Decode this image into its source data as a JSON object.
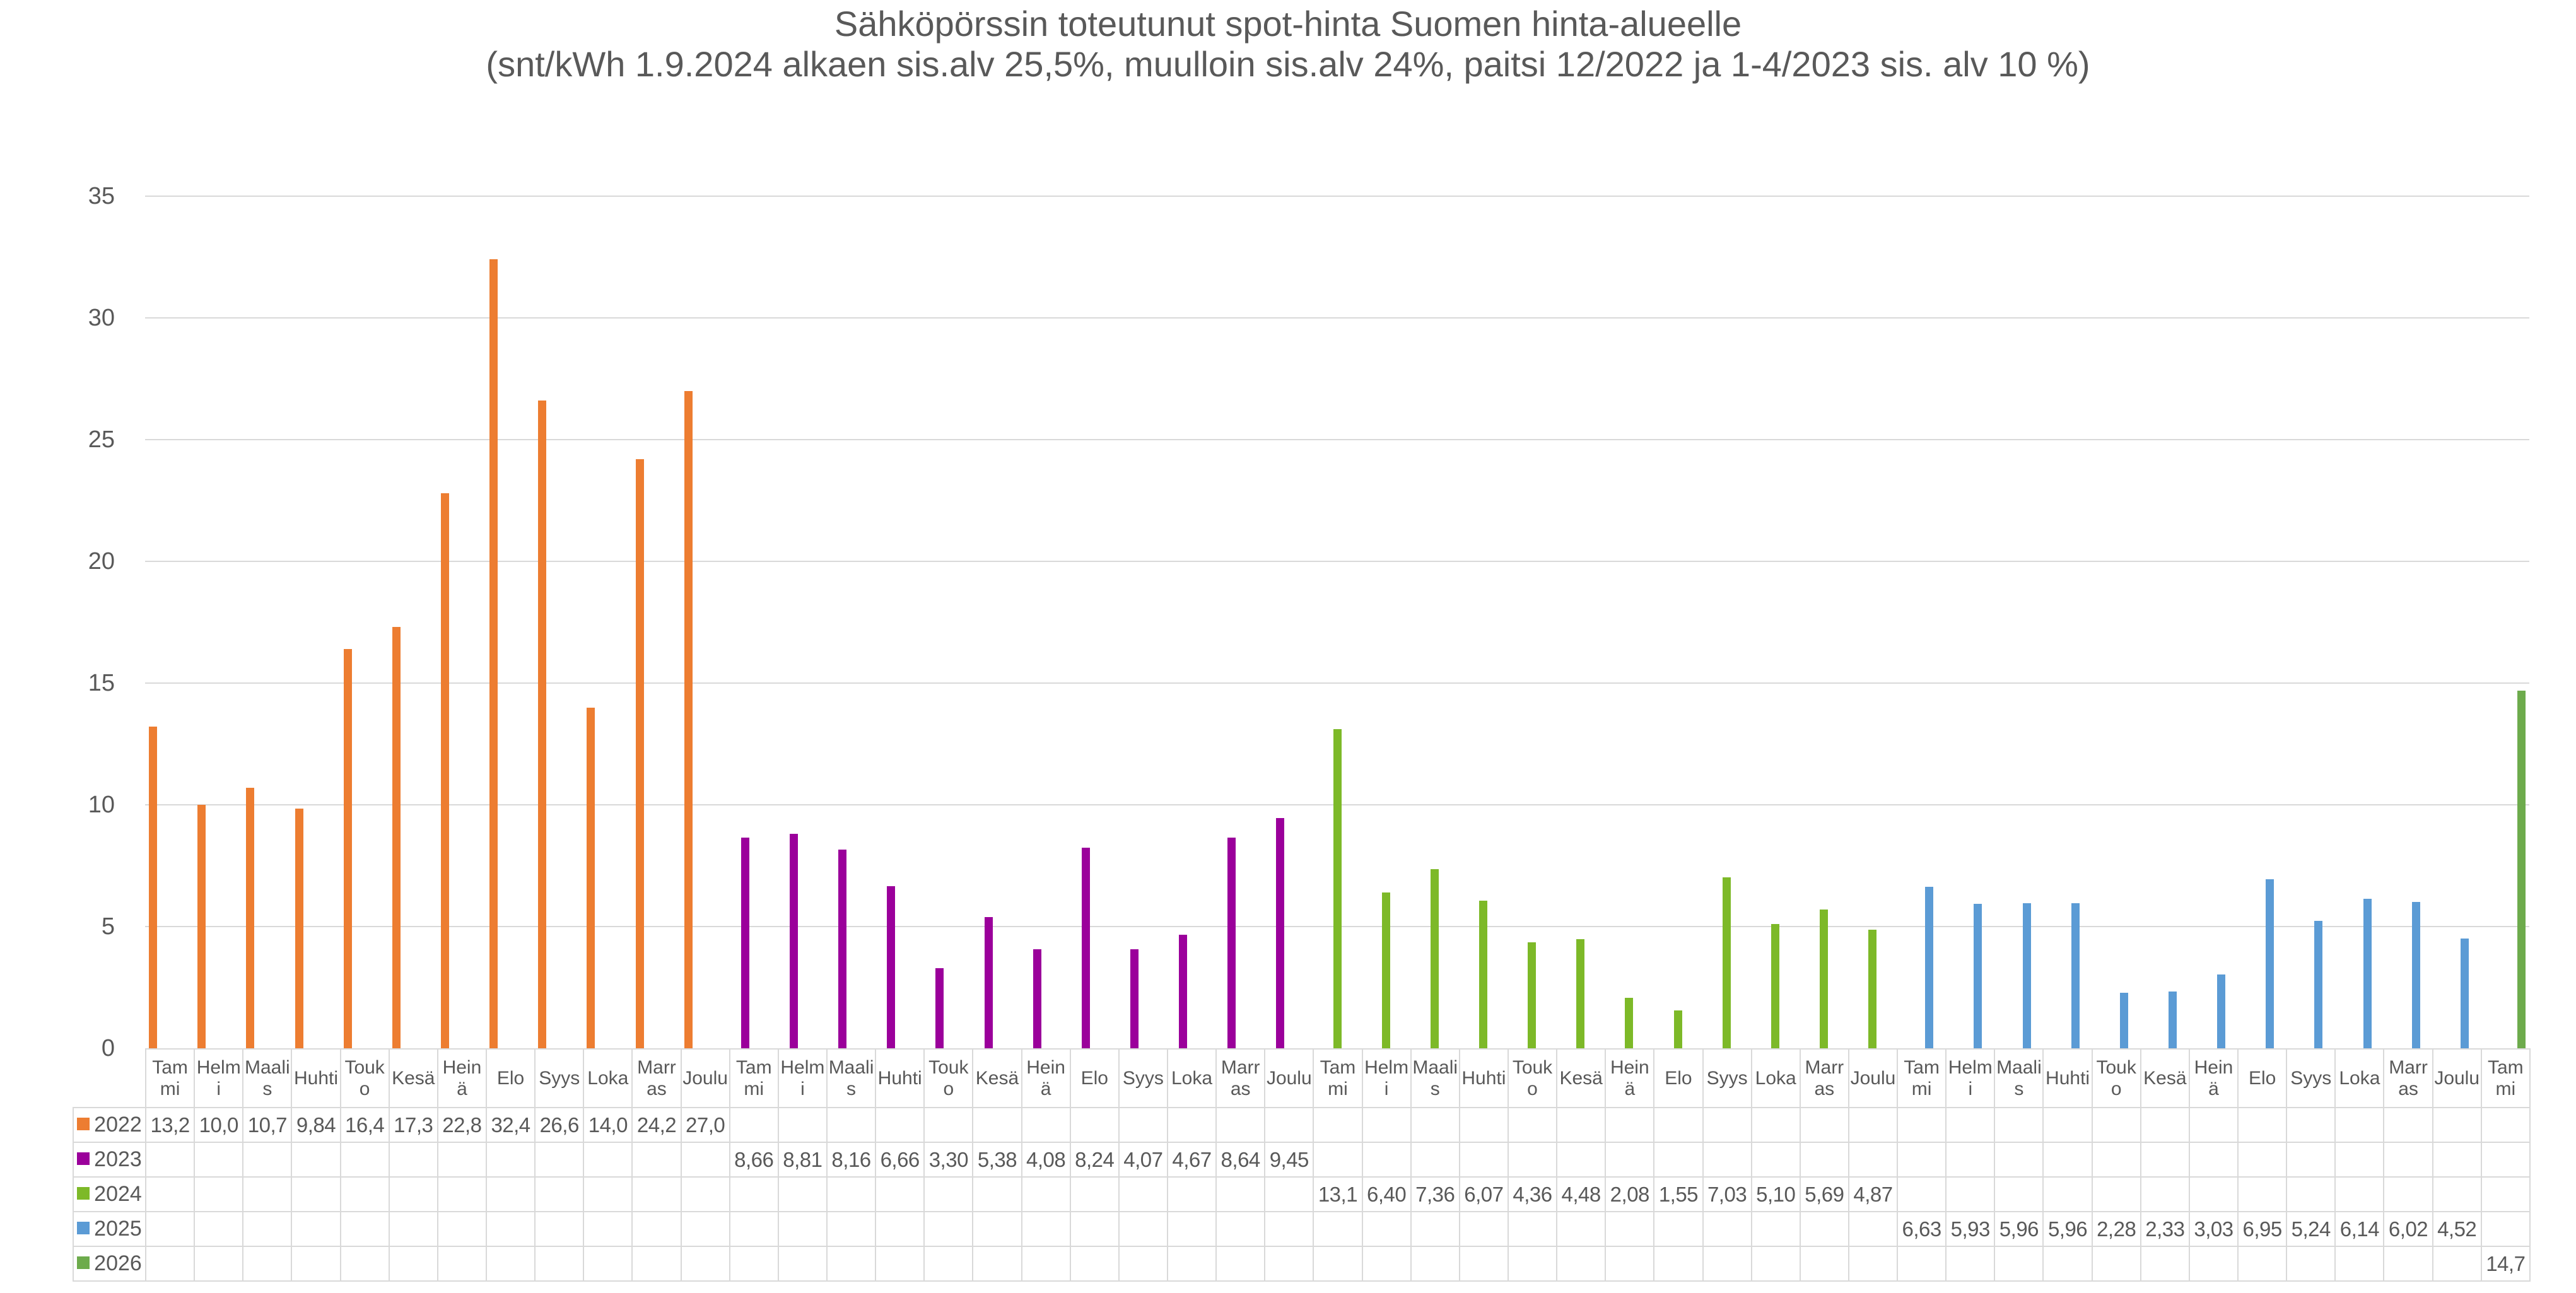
{
  "theme": {
    "background": "#FFFFFF",
    "text_color": "#595959",
    "gridline_color": "#D9D9D9",
    "table_border_color": "#D9D9D9"
  },
  "chart_data": {
    "type": "bar",
    "title": "Sähköpörssin toteutunut spot-hinta Suomen hinta-alueelle",
    "subtitle": "(snt/kWh 1.9.2024 alkaen sis.alv 25,5%, muulloin sis.alv 24%, paitsi 12/2022 ja 1-4/2023 sis. alv 10 %)",
    "unit": "snt/kWh",
    "ylim": [
      0,
      35
    ],
    "ytick_step": 5,
    "grid": "horizontal",
    "legend_position": "data-table-left-column",
    "month_lines": {
      "Tammi": [
        "Tam",
        "mi"
      ],
      "Helmi": [
        "Helm",
        "i"
      ],
      "Maalis": [
        "Maali",
        "s"
      ],
      "Huhti": [
        "Huhti"
      ],
      "Touko": [
        "Touk",
        "o"
      ],
      "Kesä": [
        "Kesä"
      ],
      "Heinä": [
        "Hein",
        "ä"
      ],
      "Elo": [
        "Elo"
      ],
      "Syys": [
        "Syys"
      ],
      "Loka": [
        "Loka"
      ],
      "Marras": [
        "Marr",
        "as"
      ],
      "Joulu": [
        "Joulu"
      ]
    },
    "series": [
      {
        "name": "2022",
        "color": "#ED7D31",
        "months": [
          "Tammi",
          "Helmi",
          "Maalis",
          "Huhti",
          "Touko",
          "Kesä",
          "Heinä",
          "Elo",
          "Syys",
          "Loka",
          "Marras",
          "Joulu"
        ],
        "values": [
          13.2,
          10.0,
          10.7,
          9.84,
          16.4,
          17.3,
          22.8,
          32.4,
          26.6,
          14.0,
          24.2,
          27.0
        ],
        "values_display": [
          "13,2",
          "10,0",
          "10,7",
          "9,84",
          "16,4",
          "17,3",
          "22,8",
          "32,4",
          "26,6",
          "14,0",
          "24,2",
          "27,0"
        ]
      },
      {
        "name": "2023",
        "color": "#9B009B",
        "months": [
          "Tammi",
          "Helmi",
          "Maalis",
          "Huhti",
          "Touko",
          "Kesä",
          "Heinä",
          "Elo",
          "Syys",
          "Loka",
          "Marras",
          "Joulu"
        ],
        "values": [
          8.66,
          8.81,
          8.16,
          6.66,
          3.3,
          5.38,
          4.08,
          8.24,
          4.07,
          4.67,
          8.64,
          9.45
        ],
        "values_display": [
          "8,66",
          "8,81",
          "8,16",
          "6,66",
          "3,30",
          "5,38",
          "4,08",
          "8,24",
          "4,07",
          "4,67",
          "8,64",
          "9,45"
        ]
      },
      {
        "name": "2024",
        "color": "#7DB928",
        "months": [
          "Tammi",
          "Helmi",
          "Maalis",
          "Huhti",
          "Touko",
          "Kesä",
          "Heinä",
          "Elo",
          "Syys",
          "Loka",
          "Marras",
          "Joulu"
        ],
        "values": [
          13.1,
          6.4,
          7.36,
          6.07,
          4.36,
          4.48,
          2.08,
          1.55,
          7.03,
          5.1,
          5.69,
          4.87
        ],
        "values_display": [
          "13,1",
          "6,40",
          "7,36",
          "6,07",
          "4,36",
          "4,48",
          "2,08",
          "1,55",
          "7,03",
          "5,10",
          "5,69",
          "4,87"
        ]
      },
      {
        "name": "2025",
        "color": "#5B9BD5",
        "months": [
          "Tammi",
          "Helmi",
          "Maalis",
          "Huhti",
          "Touko",
          "Kesä",
          "Heinä",
          "Elo",
          "Syys",
          "Loka",
          "Marras",
          "Joulu"
        ],
        "values": [
          6.63,
          5.93,
          5.96,
          5.96,
          2.28,
          2.33,
          3.03,
          6.95,
          5.24,
          6.14,
          6.02,
          4.52
        ],
        "values_display": [
          "6,63",
          "5,93",
          "5,96",
          "5,96",
          "2,28",
          "2,33",
          "3,03",
          "6,95",
          "5,24",
          "6,14",
          "6,02",
          "4,52"
        ]
      },
      {
        "name": "2026",
        "color": "#6DAB4C",
        "months": [
          "Tammi"
        ],
        "values": [
          14.7
        ],
        "values_display": [
          "14,7"
        ]
      }
    ]
  }
}
